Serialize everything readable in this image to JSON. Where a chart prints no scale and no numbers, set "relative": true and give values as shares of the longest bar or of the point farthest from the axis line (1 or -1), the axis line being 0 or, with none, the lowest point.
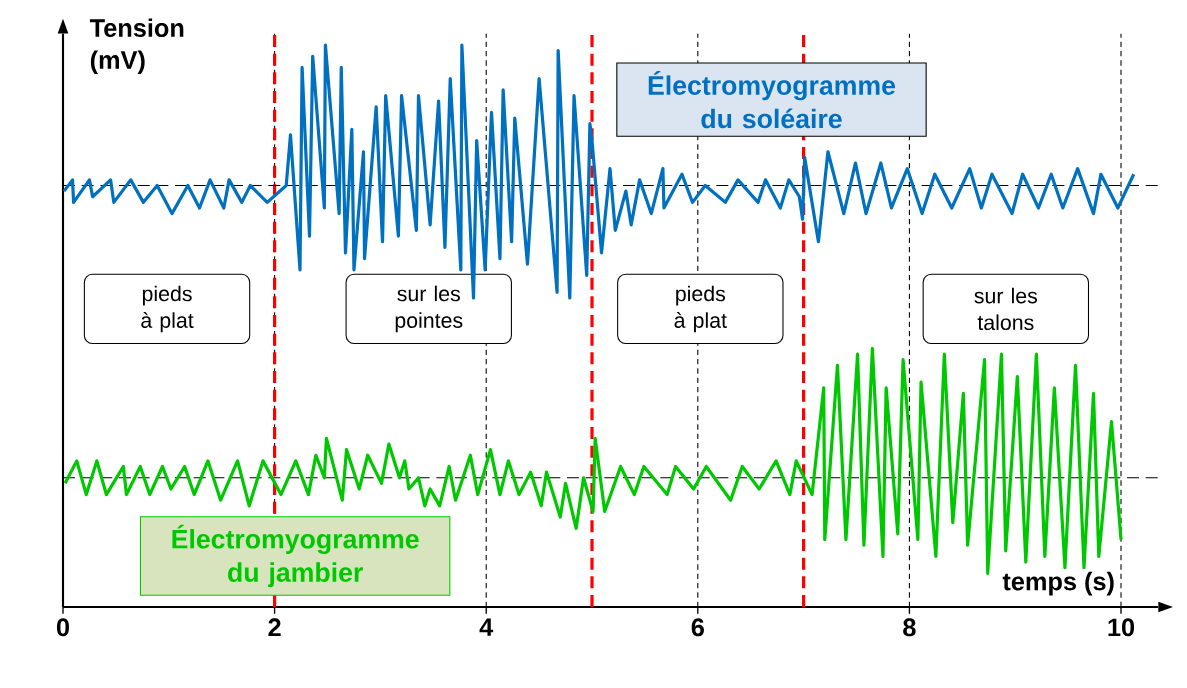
{
  "chart_data": {
    "type": "line",
    "relative": true,
    "xlabel": "temps (s)",
    "ylabel": "Tension (mV)",
    "xlim": [
      0,
      10.35
    ],
    "xticks": [
      0,
      2,
      4,
      6,
      8,
      10
    ],
    "tick_labels": "x",
    "grid": "x",
    "marker": "none",
    "line_style": "solid",
    "series": [
      {
        "name": "Électromyogramme du soléaire",
        "color": "#0070c0",
        "x": [
          0.01,
          0.09,
          0.1,
          0.25,
          0.28,
          0.45,
          0.48,
          0.64,
          0.76,
          0.89,
          1.03,
          1.18,
          1.29,
          1.39,
          1.52,
          1.57,
          1.69,
          1.77,
          1.93,
          2.11,
          2.15,
          2.24,
          2.26,
          2.33,
          2.36,
          2.47,
          2.48,
          2.61,
          2.63,
          2.67,
          2.73,
          2.75,
          2.84,
          2.85,
          2.96,
          3.02,
          3.05,
          3.17,
          3.2,
          3.34,
          3.36,
          3.47,
          3.55,
          3.61,
          3.66,
          3.76,
          3.77,
          3.88,
          3.91,
          3.99,
          4.05,
          4.13,
          4.16,
          4.24,
          4.27,
          4.39,
          4.5,
          4.67,
          4.68,
          4.79,
          4.83,
          4.95,
          4.98,
          5.0,
          5.09,
          5.17,
          5.22,
          5.32,
          5.37,
          5.45,
          5.56,
          5.67,
          5.68,
          5.85,
          5.95,
          6.07,
          6.26,
          6.38,
          6.57,
          6.64,
          6.78,
          6.86,
          6.96,
          6.99,
          7.01,
          7.14,
          7.23,
          7.38,
          7.49,
          7.59,
          7.73,
          7.83,
          7.98,
          8.12,
          8.24,
          8.4,
          8.57,
          8.68,
          8.78,
          8.97,
          9.07,
          9.22,
          9.34,
          9.45,
          9.59,
          9.74,
          9.81,
          9.97,
          10.12
        ],
        "values": [
          0.74,
          0.76,
          0.72,
          0.76,
          0.73,
          0.76,
          0.72,
          0.76,
          0.72,
          0.75,
          0.7,
          0.75,
          0.71,
          0.76,
          0.71,
          0.76,
          0.72,
          0.75,
          0.72,
          0.75,
          0.84,
          0.6,
          0.96,
          0.66,
          0.98,
          0.71,
          1.0,
          0.7,
          0.96,
          0.63,
          0.85,
          0.6,
          0.81,
          0.62,
          0.89,
          0.65,
          0.91,
          0.66,
          0.91,
          0.67,
          0.91,
          0.68,
          0.9,
          0.64,
          0.94,
          0.6,
          1.0,
          0.55,
          0.83,
          0.6,
          0.88,
          0.62,
          0.92,
          0.65,
          0.87,
          0.61,
          0.94,
          0.56,
          0.99,
          0.55,
          0.91,
          0.59,
          0.86,
          0.83,
          0.63,
          0.78,
          0.67,
          0.74,
          0.68,
          0.76,
          0.7,
          0.78,
          0.71,
          0.77,
          0.72,
          0.75,
          0.72,
          0.76,
          0.72,
          0.76,
          0.71,
          0.76,
          0.73,
          0.69,
          0.8,
          0.65,
          0.81,
          0.7,
          0.79,
          0.7,
          0.79,
          0.71,
          0.78,
          0.7,
          0.77,
          0.71,
          0.78,
          0.71,
          0.77,
          0.7,
          0.77,
          0.71,
          0.77,
          0.71,
          0.78,
          0.7,
          0.77,
          0.71,
          0.77
        ]
      },
      {
        "name": "Électromyogramme du jambier",
        "color": "#00c800",
        "x": [
          0.02,
          0.13,
          0.22,
          0.32,
          0.41,
          0.57,
          0.6,
          0.73,
          0.82,
          0.94,
          1.02,
          1.15,
          1.24,
          1.37,
          1.49,
          1.65,
          1.76,
          1.89,
          2.06,
          2.2,
          2.32,
          2.39,
          2.47,
          2.49,
          2.64,
          2.68,
          2.8,
          2.88,
          3.01,
          3.08,
          3.18,
          3.23,
          3.27,
          3.36,
          3.42,
          3.47,
          3.56,
          3.65,
          3.71,
          3.85,
          3.92,
          4.04,
          4.13,
          4.21,
          4.31,
          4.42,
          4.52,
          4.57,
          4.7,
          4.75,
          4.85,
          4.92,
          5.01,
          5.03,
          5.12,
          5.27,
          5.4,
          5.49,
          5.71,
          5.79,
          5.96,
          6.08,
          6.31,
          6.42,
          6.58,
          6.74,
          6.87,
          6.93,
          7.08,
          7.19,
          7.2,
          7.32,
          7.4,
          7.51,
          7.57,
          7.65,
          7.75,
          7.78,
          7.89,
          7.94,
          8.08,
          8.11,
          8.25,
          8.33,
          8.41,
          8.51,
          8.55,
          8.71,
          8.74,
          8.87,
          8.91,
          9.02,
          9.1,
          9.2,
          9.28,
          9.37,
          9.47,
          9.57,
          9.65,
          9.74,
          9.79,
          9.91,
          10.0
        ],
        "values": [
          0.22,
          0.26,
          0.2,
          0.26,
          0.2,
          0.25,
          0.2,
          0.25,
          0.2,
          0.25,
          0.21,
          0.25,
          0.2,
          0.26,
          0.19,
          0.26,
          0.18,
          0.26,
          0.2,
          0.26,
          0.2,
          0.27,
          0.23,
          0.3,
          0.19,
          0.28,
          0.21,
          0.27,
          0.22,
          0.29,
          0.23,
          0.26,
          0.21,
          0.23,
          0.18,
          0.21,
          0.18,
          0.25,
          0.19,
          0.27,
          0.2,
          0.28,
          0.2,
          0.26,
          0.2,
          0.24,
          0.18,
          0.24,
          0.16,
          0.22,
          0.14,
          0.23,
          0.17,
          0.3,
          0.17,
          0.25,
          0.2,
          0.25,
          0.2,
          0.25,
          0.21,
          0.25,
          0.19,
          0.25,
          0.21,
          0.26,
          0.2,
          0.26,
          0.2,
          0.39,
          0.12,
          0.43,
          0.12,
          0.45,
          0.11,
          0.46,
          0.09,
          0.39,
          0.13,
          0.44,
          0.12,
          0.4,
          0.09,
          0.45,
          0.15,
          0.38,
          0.11,
          0.44,
          0.06,
          0.45,
          0.1,
          0.41,
          0.08,
          0.45,
          0.09,
          0.39,
          0.07,
          0.43,
          0.07,
          0.38,
          0.09,
          0.33,
          0.12
        ]
      }
    ],
    "ref_lines": [
      {
        "axis": "x",
        "value": 2,
        "color": "#ff0000",
        "line_style": "dashed"
      },
      {
        "axis": "x",
        "value": 5,
        "color": "#ff0000",
        "line_style": "dashed"
      },
      {
        "axis": "x",
        "value": 7,
        "color": "#ff0000",
        "line_style": "dashed"
      },
      {
        "axis": "y",
        "value": 0.75,
        "color": "#000000",
        "line_style": "dashed"
      },
      {
        "axis": "y",
        "value": 0.23,
        "color": "#000000",
        "line_style": "dashed"
      }
    ],
    "annotations": [
      "pieds à plat",
      "sur les pointes",
      "pieds à plat",
      "sur les talons"
    ]
  }
}
